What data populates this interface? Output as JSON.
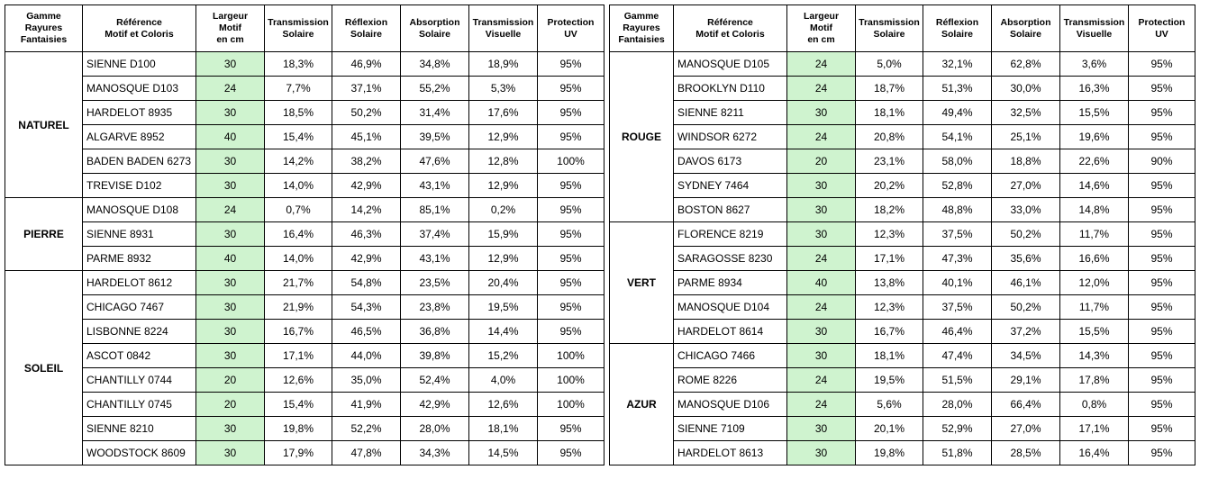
{
  "headers": {
    "gamme": [
      "Gamme",
      "Rayures",
      "Fantaisies"
    ],
    "reference": [
      "Référence",
      "Motif et Coloris"
    ],
    "largeur": [
      "Largeur",
      "Motif",
      "en cm"
    ],
    "transmission_solaire": [
      "Transmission",
      "Solaire"
    ],
    "reflexion_solaire": [
      "Réflexion",
      "Solaire"
    ],
    "absorption_solaire": [
      "Absorption",
      "Solaire"
    ],
    "transmission_visuelle": [
      "Transmission",
      "Visuelle"
    ],
    "protection_uv": [
      "Protection",
      "UV"
    ]
  },
  "colors": {
    "width_highlight": "#cff3cf",
    "border": "#000000"
  },
  "left_groups": [
    {
      "name": "NATUREL",
      "rows": [
        [
          "SIENNE D100",
          "30",
          "18,3%",
          "46,9%",
          "34,8%",
          "18,9%",
          "95%"
        ],
        [
          "MANOSQUE D103",
          "24",
          "7,7%",
          "37,1%",
          "55,2%",
          "5,3%",
          "95%"
        ],
        [
          "HARDELOT 8935",
          "30",
          "18,5%",
          "50,2%",
          "31,4%",
          "17,6%",
          "95%"
        ],
        [
          "ALGARVE 8952",
          "40",
          "15,4%",
          "45,1%",
          "39,5%",
          "12,9%",
          "95%"
        ],
        [
          "BADEN BADEN 6273",
          "30",
          "14,2%",
          "38,2%",
          "47,6%",
          "12,8%",
          "100%"
        ],
        [
          "TREVISE D102",
          "30",
          "14,0%",
          "42,9%",
          "43,1%",
          "12,9%",
          "95%"
        ]
      ]
    },
    {
      "name": "PIERRE",
      "rows": [
        [
          "MANOSQUE D108",
          "24",
          "0,7%",
          "14,2%",
          "85,1%",
          "0,2%",
          "95%"
        ],
        [
          "SIENNE 8931",
          "30",
          "16,4%",
          "46,3%",
          "37,4%",
          "15,9%",
          "95%"
        ],
        [
          "PARME 8932",
          "40",
          "14,0%",
          "42,9%",
          "43,1%",
          "12,9%",
          "95%"
        ]
      ]
    },
    {
      "name": "SOLEIL",
      "rows": [
        [
          "HARDELOT 8612",
          "30",
          "21,7%",
          "54,8%",
          "23,5%",
          "20,4%",
          "95%"
        ],
        [
          "CHICAGO 7467",
          "30",
          "21,9%",
          "54,3%",
          "23,8%",
          "19,5%",
          "95%"
        ],
        [
          "LISBONNE 8224",
          "30",
          "16,7%",
          "46,5%",
          "36,8%",
          "14,4%",
          "95%"
        ],
        [
          "ASCOT 0842",
          "30",
          "17,1%",
          "44,0%",
          "39,8%",
          "15,2%",
          "100%"
        ],
        [
          "CHANTILLY 0744",
          "20",
          "12,6%",
          "35,0%",
          "52,4%",
          "4,0%",
          "100%"
        ],
        [
          "CHANTILLY 0745",
          "20",
          "15,4%",
          "41,9%",
          "42,9%",
          "12,6%",
          "100%"
        ],
        [
          "SIENNE 8210",
          "30",
          "19,8%",
          "52,2%",
          "28,0%",
          "18,1%",
          "95%"
        ],
        [
          "WOODSTOCK 8609",
          "30",
          "17,9%",
          "47,8%",
          "34,3%",
          "14,5%",
          "95%"
        ]
      ]
    }
  ],
  "right_groups": [
    {
      "name": "ROUGE",
      "rows": [
        [
          "MANOSQUE D105",
          "24",
          "5,0%",
          "32,1%",
          "62,8%",
          "3,6%",
          "95%"
        ],
        [
          "BROOKLYN D110",
          "24",
          "18,7%",
          "51,3%",
          "30,0%",
          "16,3%",
          "95%"
        ],
        [
          "SIENNE 8211",
          "30",
          "18,1%",
          "49,4%",
          "32,5%",
          "15,5%",
          "95%"
        ],
        [
          "WINDSOR 6272",
          "24",
          "20,8%",
          "54,1%",
          "25,1%",
          "19,6%",
          "95%"
        ],
        [
          "DAVOS 6173",
          "20",
          "23,1%",
          "58,0%",
          "18,8%",
          "22,6%",
          "90%"
        ],
        [
          "SYDNEY 7464",
          "30",
          "20,2%",
          "52,8%",
          "27,0%",
          "14,6%",
          "95%"
        ],
        [
          "BOSTON 8627",
          "30",
          "18,2%",
          "48,8%",
          "33,0%",
          "14,8%",
          "95%"
        ]
      ]
    },
    {
      "name": "VERT",
      "rows": [
        [
          "FLORENCE 8219",
          "30",
          "12,3%",
          "37,5%",
          "50,2%",
          "11,7%",
          "95%"
        ],
        [
          "SARAGOSSE 8230",
          "24",
          "17,1%",
          "47,3%",
          "35,6%",
          "16,6%",
          "95%"
        ],
        [
          "PARME 8934",
          "40",
          "13,8%",
          "40,1%",
          "46,1%",
          "12,0%",
          "95%"
        ],
        [
          "MANOSQUE D104",
          "24",
          "12,3%",
          "37,5%",
          "50,2%",
          "11,7%",
          "95%"
        ],
        [
          "HARDELOT 8614",
          "30",
          "16,7%",
          "46,4%",
          "37,2%",
          "15,5%",
          "95%"
        ]
      ]
    },
    {
      "name": "AZUR",
      "rows": [
        [
          "CHICAGO 7466",
          "30",
          "18,1%",
          "47,4%",
          "34,5%",
          "14,3%",
          "95%"
        ],
        [
          "ROME 8226",
          "24",
          "19,5%",
          "51,5%",
          "29,1%",
          "17,8%",
          "95%"
        ],
        [
          "MANOSQUE D106",
          "24",
          "5,6%",
          "28,0%",
          "66,4%",
          "0,8%",
          "95%"
        ],
        [
          "SIENNE 7109",
          "30",
          "20,1%",
          "52,9%",
          "27,0%",
          "17,1%",
          "95%"
        ],
        [
          "HARDELOT 8613",
          "30",
          "19,8%",
          "51,8%",
          "28,5%",
          "16,4%",
          "95%"
        ]
      ]
    }
  ]
}
